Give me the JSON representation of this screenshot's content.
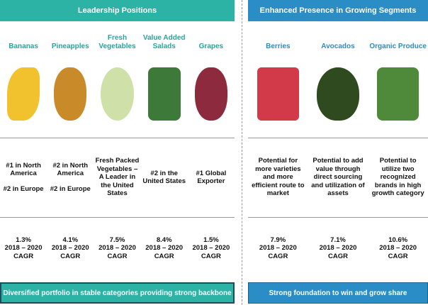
{
  "left": {
    "title": "Leadership Positions",
    "columns": [
      {
        "name": [
          "Bananas"
        ],
        "position": [
          "#1 in North America",
          "#2 in Europe"
        ],
        "growth": [
          "1.3%",
          "2018 – 2020",
          "CAGR"
        ]
      },
      {
        "name": [
          "Pineapples"
        ],
        "position": [
          "#2 in North America",
          "#2 in Europe"
        ],
        "growth": [
          "4.1%",
          "2018 – 2020",
          "CAGR"
        ]
      },
      {
        "name": [
          "Fresh",
          "Vegetables"
        ],
        "position": [
          "Fresh Packed Vegetables – A Leader in the United States"
        ],
        "growth": [
          "7.5%",
          "2018 – 2020",
          "CAGR"
        ]
      },
      {
        "name": [
          "Value Added",
          "Salads"
        ],
        "position": [
          "#2 in the United States"
        ],
        "growth": [
          "8.4%",
          "2018 – 2020",
          "CAGR"
        ]
      },
      {
        "name": [
          "Grapes"
        ],
        "position": [
          "#1 Global Exporter"
        ],
        "growth": [
          "1.5%",
          "2018 – 2020",
          "CAGR"
        ]
      }
    ],
    "footer": "Diversified portfolio in stable categories providing strong backbone"
  },
  "right": {
    "title": "Enhanced Presence in Growing Segments",
    "columns": [
      {
        "name": [
          "Berries"
        ],
        "position": [
          "Potential for more varieties and more efficient route to market"
        ],
        "growth": [
          "7.9%",
          "2018 – 2020",
          "CAGR"
        ]
      },
      {
        "name": [
          "Avocados"
        ],
        "position": [
          "Potential to add value through direct sourcing and utilization of assets"
        ],
        "growth": [
          "7.1%",
          "2018 – 2020",
          "CAGR"
        ]
      },
      {
        "name": [
          "Organic Produce"
        ],
        "position": [
          "Potential to utilize two recognized brands in high growth category"
        ],
        "growth": [
          "10.6%",
          "2018 – 2020",
          "CAGR"
        ]
      }
    ],
    "footer": "Strong foundation to win and grow share"
  }
}
